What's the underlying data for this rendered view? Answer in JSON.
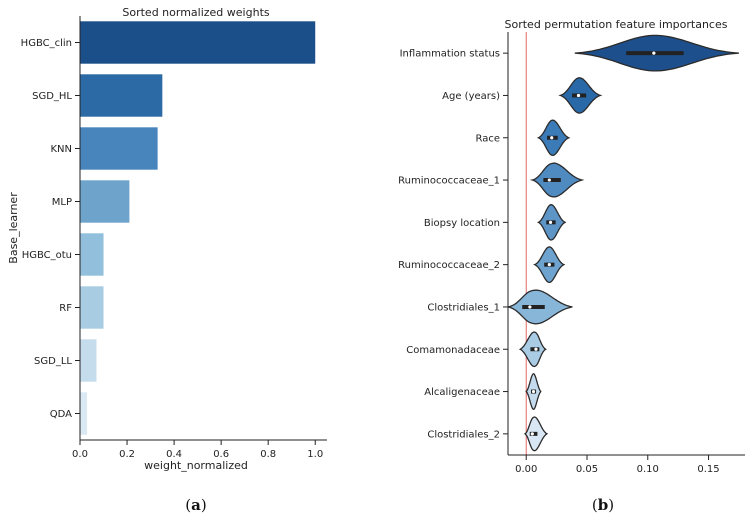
{
  "chart_data": [
    {
      "type": "bar",
      "orientation": "horizontal",
      "title": "Sorted normalized weights",
      "xlabel": "weight_normalized",
      "ylabel": "Base_learner",
      "xlim": [
        0.0,
        1.05
      ],
      "xticks": [
        "0.0",
        "0.2",
        "0.4",
        "0.6",
        "0.8",
        "1.0"
      ],
      "categories": [
        "HGBC_clin",
        "SGD_HL",
        "KNN",
        "MLP",
        "HGBC_otu",
        "RF",
        "SGD_LL",
        "QDA"
      ],
      "values": [
        1.0,
        0.35,
        0.33,
        0.21,
        0.1,
        0.1,
        0.07,
        0.03
      ],
      "colors": [
        "#1b4f8a",
        "#2c6aa6",
        "#4985bd",
        "#6ea4cb",
        "#92bfdb",
        "#a8cce2",
        "#c5dcec",
        "#dbe9f4"
      ],
      "caption_label": "a"
    },
    {
      "type": "violin",
      "orientation": "horizontal",
      "title": "Sorted permutation feature importances",
      "xlim": [
        -0.015,
        0.18
      ],
      "xticks": [
        "0.00",
        "0.05",
        "0.10",
        "0.15"
      ],
      "reference_line": 0.0,
      "categories": [
        "Inflammation status",
        "Age (years)",
        "Race",
        "Ruminococcaceae_1",
        "Biopsy location",
        "Ruminococcaceae_2",
        "Clostridiales_1",
        "Comamonadaceae",
        "Alcaligenaceae",
        "Clostridiales_2"
      ],
      "medians": [
        0.105,
        0.043,
        0.021,
        0.019,
        0.02,
        0.019,
        0.003,
        0.008,
        0.006,
        0.005
      ],
      "ranges": [
        [
          0.04,
          0.175
        ],
        [
          0.028,
          0.061
        ],
        [
          0.01,
          0.035
        ],
        [
          0.005,
          0.046
        ],
        [
          0.01,
          0.032
        ],
        [
          0.007,
          0.031
        ],
        [
          -0.015,
          0.038
        ],
        [
          -0.005,
          0.016
        ],
        [
          0.0,
          0.012
        ],
        [
          -0.001,
          0.017
        ]
      ],
      "colors": [
        "#1d4f8c",
        "#2a69a8",
        "#3b7bb7",
        "#4f8bc1",
        "#5e95c7",
        "#6ea3cf",
        "#88b6d8",
        "#a9cbe4",
        "#c4dbed",
        "#d8e7f3"
      ],
      "caption_label": "b"
    }
  ]
}
